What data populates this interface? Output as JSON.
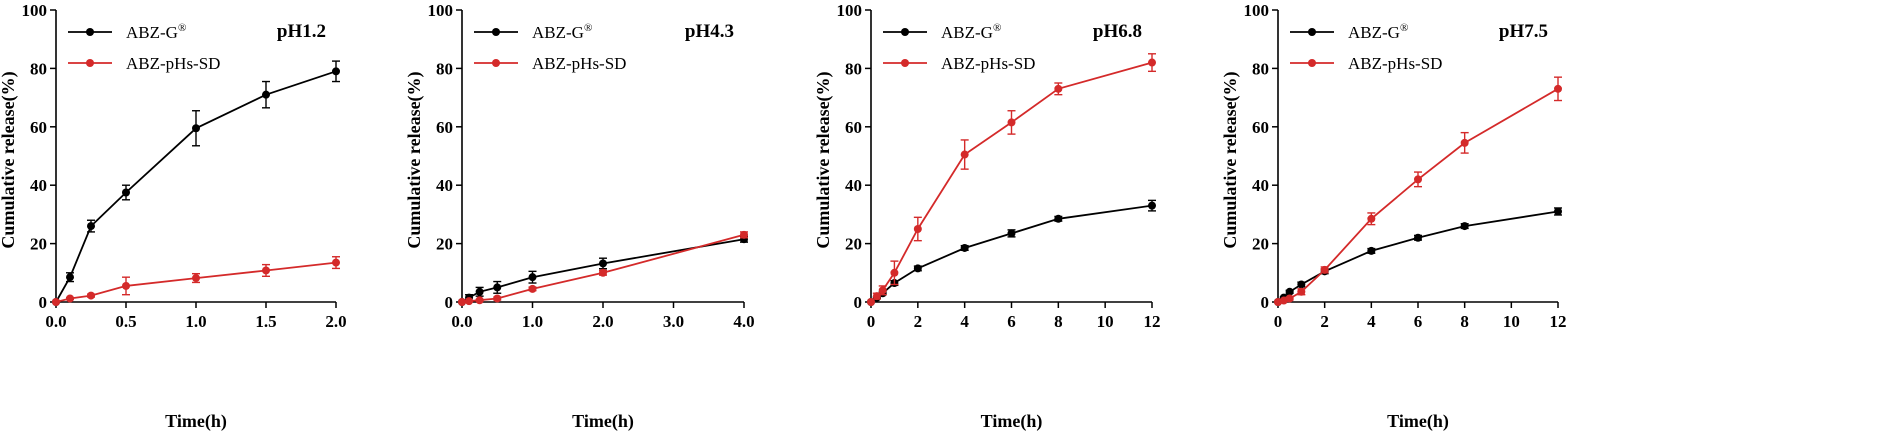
{
  "colors": {
    "black_series": "#000000",
    "red_series": "#d42a2a",
    "axis": "#000000"
  },
  "chart_data": [
    {
      "type": "line",
      "title": "pH1.2",
      "xlabel": "Time(h)",
      "ylabel": "Cumulative release(%)",
      "xlim": [
        0,
        2.0
      ],
      "ylim": [
        0,
        100
      ],
      "xticks": [
        0,
        0.5,
        1.0,
        1.5,
        2.0
      ],
      "xtick_labels": [
        "0.0",
        "0.5",
        "1.0",
        "1.5",
        "2.0"
      ],
      "yticks": [
        0,
        20,
        40,
        60,
        80,
        100
      ],
      "ytick_labels": [
        "0",
        "20",
        "40",
        "60",
        "80",
        "100"
      ],
      "legend": "top-left",
      "series": [
        {
          "name": "ABZ-G",
          "name_sup": "®",
          "color": "#000000",
          "x": [
            0,
            0.1,
            0.25,
            0.5,
            1.0,
            1.5,
            2.0
          ],
          "y": [
            0,
            8.5,
            26,
            37.5,
            59.5,
            71,
            79
          ],
          "err": [
            0,
            1.5,
            2,
            2.5,
            6,
            4.5,
            3.5
          ]
        },
        {
          "name": "ABZ-pHs-SD",
          "name_sup": "",
          "color": "#d42a2a",
          "x": [
            0,
            0.1,
            0.25,
            0.5,
            1.0,
            1.5,
            2.0
          ],
          "y": [
            0,
            1.2,
            2.2,
            5.5,
            8.2,
            10.8,
            13.5
          ],
          "err": [
            0,
            0.3,
            0.5,
            3,
            1.5,
            2,
            2
          ]
        }
      ]
    },
    {
      "type": "line",
      "title": "pH4.3",
      "xlabel": "Time(h)",
      "ylabel": "Cumulative release(%)",
      "xlim": [
        0,
        4.0
      ],
      "ylim": [
        0,
        100
      ],
      "xticks": [
        0,
        1.0,
        2.0,
        3.0,
        4.0
      ],
      "xtick_labels": [
        "0.0",
        "1.0",
        "2.0",
        "3.0",
        "4.0"
      ],
      "yticks": [
        0,
        20,
        40,
        60,
        80,
        100
      ],
      "ytick_labels": [
        "0",
        "20",
        "40",
        "60",
        "80",
        "100"
      ],
      "legend": "top-left",
      "series": [
        {
          "name": "ABZ-G",
          "name_sup": "®",
          "color": "#000000",
          "x": [
            0,
            0.1,
            0.25,
            0.5,
            1.0,
            2.0,
            4.0
          ],
          "y": [
            0,
            1.5,
            3.5,
            5,
            8.5,
            13.2,
            21.5
          ],
          "err": [
            0,
            1,
            1.5,
            2,
            2,
            1.8,
            1
          ]
        },
        {
          "name": "ABZ-pHs-SD",
          "name_sup": "",
          "color": "#d42a2a",
          "x": [
            0,
            0.1,
            0.25,
            0.5,
            1.0,
            2.0,
            4.0
          ],
          "y": [
            0,
            0.3,
            0.6,
            1.2,
            4.5,
            10,
            23
          ],
          "err": [
            0,
            0.2,
            0.3,
            0.5,
            0.6,
            0.8,
            1
          ]
        }
      ]
    },
    {
      "type": "line",
      "title": "pH6.8",
      "xlabel": "Time(h)",
      "ylabel": "Cumulative release(%)",
      "xlim": [
        0,
        12
      ],
      "ylim": [
        0,
        100
      ],
      "xticks": [
        0,
        2,
        4,
        6,
        8,
        10,
        12
      ],
      "xtick_labels": [
        "0",
        "2",
        "4",
        "6",
        "8",
        "10",
        "12"
      ],
      "yticks": [
        0,
        20,
        40,
        60,
        80,
        100
      ],
      "ytick_labels": [
        "0",
        "20",
        "40",
        "60",
        "80",
        "100"
      ],
      "legend": "top-left",
      "series": [
        {
          "name": "ABZ-G",
          "name_sup": "®",
          "color": "#000000",
          "x": [
            0,
            0.25,
            0.5,
            1,
            2,
            4,
            6,
            8,
            12
          ],
          "y": [
            0,
            1.5,
            3,
            6.5,
            11.5,
            18.5,
            23.5,
            28.5,
            33
          ],
          "err": [
            0,
            0.3,
            0.5,
            0.8,
            0.8,
            0.8,
            1.2,
            0.8,
            1.8
          ]
        },
        {
          "name": "ABZ-pHs-SD",
          "name_sup": "",
          "color": "#d42a2a",
          "x": [
            0,
            0.25,
            0.5,
            1,
            2,
            4,
            6,
            8,
            12
          ],
          "y": [
            0,
            2,
            4,
            10,
            25,
            50.5,
            61.5,
            73,
            82
          ],
          "err": [
            0,
            1,
            1.5,
            4,
            4,
            5,
            4,
            2,
            3
          ]
        }
      ]
    },
    {
      "type": "line",
      "title": "pH7.5",
      "xlabel": "Time(h)",
      "ylabel": "Cumulative release(%)",
      "xlim": [
        0,
        12
      ],
      "ylim": [
        0,
        100
      ],
      "xticks": [
        0,
        2,
        4,
        6,
        8,
        10,
        12
      ],
      "xtick_labels": [
        "0",
        "2",
        "4",
        "6",
        "8",
        "10",
        "12"
      ],
      "yticks": [
        0,
        20,
        40,
        60,
        80,
        100
      ],
      "ytick_labels": [
        "0",
        "20",
        "40",
        "60",
        "80",
        "100"
      ],
      "legend": "top-left",
      "series": [
        {
          "name": "ABZ-G",
          "name_sup": "®",
          "color": "#000000",
          "x": [
            0,
            0.25,
            0.5,
            1,
            2,
            4,
            6,
            8,
            12
          ],
          "y": [
            0,
            1.5,
            3.5,
            6,
            10.5,
            17.5,
            22,
            26,
            31
          ],
          "err": [
            0,
            0.3,
            0.5,
            0.8,
            0.8,
            0.8,
            0.8,
            0.8,
            1.2
          ]
        },
        {
          "name": "ABZ-pHs-SD",
          "name_sup": "",
          "color": "#d42a2a",
          "x": [
            0,
            0.25,
            0.5,
            1,
            2,
            4,
            6,
            8,
            12
          ],
          "y": [
            0,
            0.5,
            1.2,
            3.5,
            11,
            28.5,
            42,
            54.5,
            73
          ],
          "err": [
            0,
            0.3,
            0.5,
            1,
            1,
            2,
            2.5,
            3.5,
            4
          ]
        }
      ]
    }
  ]
}
